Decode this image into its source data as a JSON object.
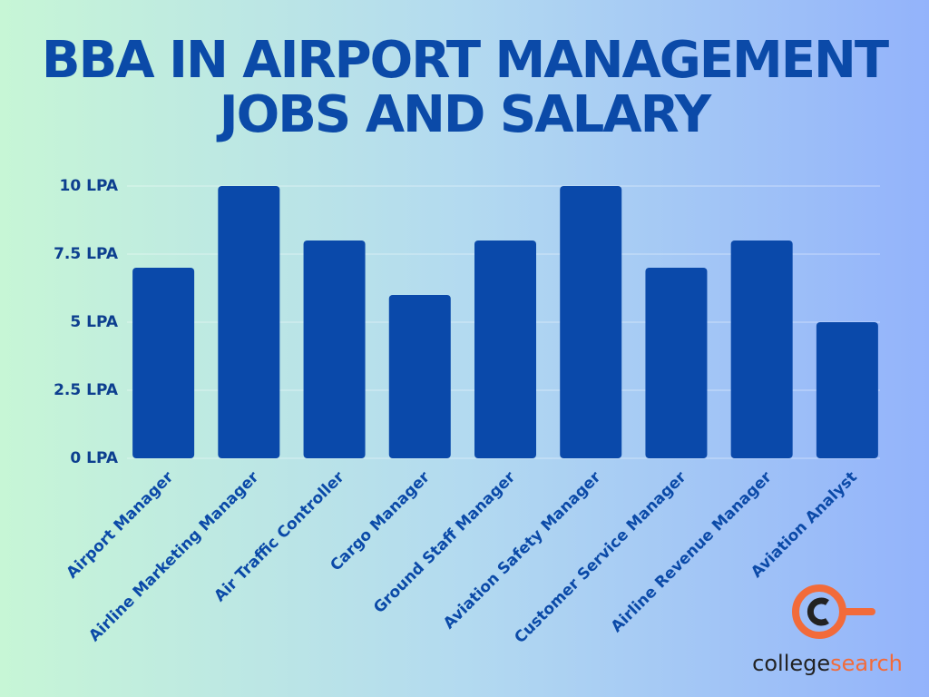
{
  "chart_data": {
    "type": "bar",
    "title": [
      "BBA IN AIRPORT MANAGEMENT",
      "JOBS AND SALARY"
    ],
    "categories": [
      "Airport Manager",
      "Airline Marketing Manager",
      "Air Traffic Controller",
      "Cargo Manager",
      "Ground Staff Manager",
      "Aviation Safety Manager",
      "Customer Service Manager",
      "Airline Revenue Manager",
      "Aviation Analyst"
    ],
    "values": [
      7,
      10,
      8,
      6,
      8,
      10,
      7,
      8,
      5
    ],
    "color": "#0a49aa",
    "ylim": [
      0,
      10
    ],
    "yticks": [
      {
        "value": 0,
        "label": "0 LPA"
      },
      {
        "value": 2.5,
        "label": "2.5 LPA"
      },
      {
        "value": 5,
        "label": "5 LPA"
      },
      {
        "value": 7.5,
        "label": "7.5 LPA"
      },
      {
        "value": 10,
        "label": "10 LPA"
      }
    ],
    "grid": true
  },
  "logo": {
    "parts": [
      "college",
      "search"
    ]
  }
}
